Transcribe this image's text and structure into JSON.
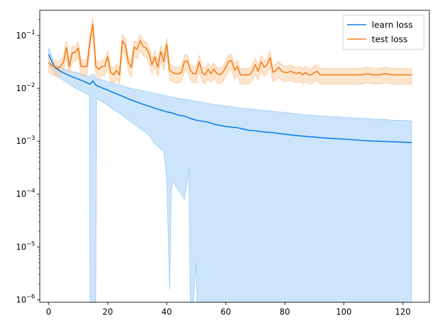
{
  "colors": {
    "learn": "#0a7ce6",
    "learn_band": "#99ccf7",
    "test": "#f07d12",
    "test_band": "#fcc99b",
    "axis": "#000000"
  },
  "legend": {
    "placement": "top-right"
  },
  "chart_data": {
    "type": "line",
    "title": "",
    "xlabel": "",
    "ylabel": "",
    "yscale": "log",
    "xlim": [
      -3,
      129
    ],
    "ylim": [
      9e-07,
      0.3
    ],
    "grid": false,
    "xticks": [
      0,
      20,
      40,
      60,
      80,
      100,
      120
    ],
    "yticks": [
      {
        "value": 1e-06,
        "base": "10",
        "exp": "−6"
      },
      {
        "value": 1e-05,
        "base": "10",
        "exp": "−5"
      },
      {
        "value": 0.0001,
        "base": "10",
        "exp": "−4"
      },
      {
        "value": 0.001,
        "base": "10",
        "exp": "−3"
      },
      {
        "value": 0.01,
        "base": "10",
        "exp": "−2"
      },
      {
        "value": 0.1,
        "base": "10",
        "exp": "−1"
      }
    ],
    "series": [
      {
        "name": "learn loss",
        "key": "learn",
        "points": [
          [
            0,
            0.044
          ],
          [
            2,
            0.025
          ],
          [
            4,
            0.021
          ],
          [
            6,
            0.0185
          ],
          [
            8,
            0.0165
          ],
          [
            10,
            0.015
          ],
          [
            12,
            0.0135
          ],
          [
            14,
            0.012
          ],
          [
            15,
            0.0138
          ],
          [
            16,
            0.0115
          ],
          [
            18,
            0.0103
          ],
          [
            20,
            0.0093
          ],
          [
            22,
            0.0083
          ],
          [
            24,
            0.0075
          ],
          [
            26,
            0.0067
          ],
          [
            28,
            0.006
          ],
          [
            30,
            0.0055
          ],
          [
            32,
            0.005
          ],
          [
            34,
            0.0046
          ],
          [
            36,
            0.0042
          ],
          [
            38,
            0.0039
          ],
          [
            40,
            0.0036
          ],
          [
            42,
            0.0034
          ],
          [
            44,
            0.0031
          ],
          [
            46,
            0.003
          ],
          [
            48,
            0.0027
          ],
          [
            50,
            0.0025
          ],
          [
            52,
            0.0024
          ],
          [
            54,
            0.0023
          ],
          [
            56,
            0.0021
          ],
          [
            58,
            0.002
          ],
          [
            60,
            0.0019
          ],
          [
            62,
            0.00185
          ],
          [
            64,
            0.0018
          ],
          [
            66,
            0.0017
          ],
          [
            68,
            0.0016
          ],
          [
            70,
            0.00158
          ],
          [
            72,
            0.00152
          ],
          [
            74,
            0.00148
          ],
          [
            76,
            0.00145
          ],
          [
            78,
            0.0014
          ],
          [
            80,
            0.00136
          ],
          [
            82,
            0.00132
          ],
          [
            84,
            0.00128
          ],
          [
            86,
            0.00125
          ],
          [
            88,
            0.00122
          ],
          [
            90,
            0.0012
          ],
          [
            92,
            0.00117
          ],
          [
            94,
            0.00115
          ],
          [
            96,
            0.00113
          ],
          [
            98,
            0.00111
          ],
          [
            100,
            0.0011
          ],
          [
            102,
            0.00108
          ],
          [
            104,
            0.00106
          ],
          [
            106,
            0.00104
          ],
          [
            108,
            0.00102
          ],
          [
            110,
            0.00101
          ],
          [
            112,
            0.001
          ],
          [
            114,
            0.00099
          ],
          [
            116,
            0.00098
          ],
          [
            118,
            0.00097
          ],
          [
            120,
            0.00096
          ],
          [
            123,
            0.00095
          ]
        ],
        "band_upper": [
          [
            0,
            0.058
          ],
          [
            2,
            0.03
          ],
          [
            4,
            0.025
          ],
          [
            6,
            0.0225
          ],
          [
            8,
            0.021
          ],
          [
            10,
            0.0195
          ],
          [
            12,
            0.018
          ],
          [
            14,
            0.0165
          ],
          [
            15,
            0.019
          ],
          [
            16,
            0.0155
          ],
          [
            18,
            0.0145
          ],
          [
            20,
            0.0135
          ],
          [
            22,
            0.0125
          ],
          [
            24,
            0.0115
          ],
          [
            26,
            0.0108
          ],
          [
            28,
            0.01
          ],
          [
            30,
            0.0095
          ],
          [
            32,
            0.009
          ],
          [
            34,
            0.0085
          ],
          [
            36,
            0.008
          ],
          [
            38,
            0.0076
          ],
          [
            40,
            0.0072
          ],
          [
            42,
            0.0068
          ],
          [
            44,
            0.0065
          ],
          [
            46,
            0.0062
          ],
          [
            48,
            0.006
          ],
          [
            50,
            0.0057
          ],
          [
            52,
            0.0055
          ],
          [
            54,
            0.0052
          ],
          [
            56,
            0.005
          ],
          [
            58,
            0.0048
          ],
          [
            60,
            0.0046
          ],
          [
            62,
            0.0045
          ],
          [
            64,
            0.0043
          ],
          [
            66,
            0.0042
          ],
          [
            68,
            0.0041
          ],
          [
            70,
            0.004
          ],
          [
            72,
            0.0039
          ],
          [
            74,
            0.0038
          ],
          [
            76,
            0.0037
          ],
          [
            78,
            0.0036
          ],
          [
            80,
            0.0035
          ],
          [
            82,
            0.0034
          ],
          [
            84,
            0.0033
          ],
          [
            86,
            0.0032
          ],
          [
            88,
            0.0031
          ],
          [
            90,
            0.0031
          ],
          [
            92,
            0.003
          ],
          [
            94,
            0.003
          ],
          [
            96,
            0.0029
          ],
          [
            98,
            0.0029
          ],
          [
            100,
            0.0028
          ],
          [
            102,
            0.0028
          ],
          [
            104,
            0.0027
          ],
          [
            106,
            0.0027
          ],
          [
            108,
            0.0027
          ],
          [
            110,
            0.0026
          ],
          [
            112,
            0.0026
          ],
          [
            114,
            0.0026
          ],
          [
            116,
            0.0025
          ],
          [
            118,
            0.0025
          ],
          [
            120,
            0.0025
          ],
          [
            123,
            0.0024
          ]
        ],
        "band_lower": [
          [
            0,
            0.03
          ],
          [
            2,
            0.019
          ],
          [
            4,
            0.0155
          ],
          [
            6,
            0.013
          ],
          [
            8,
            0.011
          ],
          [
            10,
            0.0095
          ],
          [
            12,
            0.0083
          ],
          [
            13.8,
            0.0075
          ],
          [
            14,
            1e-07
          ],
          [
            16,
            1e-07
          ],
          [
            16.2,
            0.0065
          ],
          [
            18,
            0.0056
          ],
          [
            20,
            0.0048
          ],
          [
            22,
            0.004
          ],
          [
            24,
            0.0034
          ],
          [
            26,
            0.0028
          ],
          [
            28,
            0.0023
          ],
          [
            30,
            0.0019
          ],
          [
            32,
            0.0016
          ],
          [
            34,
            0.0013
          ],
          [
            36,
            0.0009
          ],
          [
            38,
            0.00072
          ],
          [
            39,
            0.00065
          ],
          [
            40,
            0.0002
          ],
          [
            41,
            1.5e-06
          ],
          [
            41.5,
            0.0001
          ],
          [
            42,
            0.00018
          ],
          [
            44,
            0.00012
          ],
          [
            46,
            8e-05
          ],
          [
            47,
            0.00018
          ],
          [
            47.5,
            0.0003
          ],
          [
            48,
            1e-07
          ],
          [
            49,
            1e-07
          ],
          [
            50,
            5e-06
          ],
          [
            50.3,
            1e-07
          ],
          [
            123,
            1e-07
          ]
        ]
      },
      {
        "name": "test loss",
        "key": "test",
        "points": [
          [
            0,
            0.031
          ],
          [
            1,
            0.027
          ],
          [
            2,
            0.026
          ],
          [
            3,
            0.024
          ],
          [
            4,
            0.026
          ],
          [
            5,
            0.031
          ],
          [
            6,
            0.059
          ],
          [
            7,
            0.026
          ],
          [
            8,
            0.047
          ],
          [
            9,
            0.048
          ],
          [
            10,
            0.058
          ],
          [
            11,
            0.026
          ],
          [
            12,
            0.026
          ],
          [
            13,
            0.026
          ],
          [
            14,
            0.08
          ],
          [
            15,
            0.162
          ],
          [
            16,
            0.026
          ],
          [
            17,
            0.023
          ],
          [
            18,
            0.026
          ],
          [
            19,
            0.026
          ],
          [
            20,
            0.04
          ],
          [
            21,
            0.02
          ],
          [
            22,
            0.018
          ],
          [
            23,
            0.022
          ],
          [
            24,
            0.018
          ],
          [
            25,
            0.08
          ],
          [
            26,
            0.065
          ],
          [
            27,
            0.031
          ],
          [
            28,
            0.025
          ],
          [
            29,
            0.06
          ],
          [
            30,
            0.055
          ],
          [
            31,
            0.08
          ],
          [
            32,
            0.062
          ],
          [
            33,
            0.058
          ],
          [
            34,
            0.046
          ],
          [
            35,
            0.028
          ],
          [
            36,
            0.039
          ],
          [
            37,
            0.025
          ],
          [
            38,
            0.05
          ],
          [
            39,
            0.032
          ],
          [
            40,
            0.068
          ],
          [
            41,
            0.022
          ],
          [
            42,
            0.02
          ],
          [
            43,
            0.019
          ],
          [
            44,
            0.019
          ],
          [
            45,
            0.02
          ],
          [
            46,
            0.032
          ],
          [
            47,
            0.033
          ],
          [
            48,
            0.022
          ],
          [
            49,
            0.019
          ],
          [
            50,
            0.019
          ],
          [
            51,
            0.032
          ],
          [
            52,
            0.02
          ],
          [
            53,
            0.018
          ],
          [
            54,
            0.023
          ],
          [
            55,
            0.019
          ],
          [
            56,
            0.023
          ],
          [
            57,
            0.019
          ],
          [
            58,
            0.018
          ],
          [
            59,
            0.02
          ],
          [
            60,
            0.025
          ],
          [
            61,
            0.033
          ],
          [
            62,
            0.033
          ],
          [
            63,
            0.022
          ],
          [
            64,
            0.026
          ],
          [
            65,
            0.018
          ],
          [
            66,
            0.018
          ],
          [
            67,
            0.018
          ],
          [
            68,
            0.018
          ],
          [
            69,
            0.021
          ],
          [
            70,
            0.028
          ],
          [
            71,
            0.021
          ],
          [
            72,
            0.032
          ],
          [
            73,
            0.025
          ],
          [
            74,
            0.028
          ],
          [
            75,
            0.038
          ],
          [
            76,
            0.02
          ],
          [
            77,
            0.022
          ],
          [
            78,
            0.025
          ],
          [
            79,
            0.021
          ],
          [
            80,
            0.02
          ],
          [
            81,
            0.02
          ],
          [
            82,
            0.021
          ],
          [
            83,
            0.02
          ],
          [
            84,
            0.019
          ],
          [
            85,
            0.02
          ],
          [
            86,
            0.018
          ],
          [
            87,
            0.02
          ],
          [
            88,
            0.018
          ],
          [
            89,
            0.018
          ],
          [
            90,
            0.02
          ],
          [
            91,
            0.021
          ],
          [
            92,
            0.018
          ],
          [
            94,
            0.018
          ],
          [
            96,
            0.018
          ],
          [
            98,
            0.018
          ],
          [
            100,
            0.018
          ],
          [
            102,
            0.018
          ],
          [
            104,
            0.018
          ],
          [
            106,
            0.018
          ],
          [
            108,
            0.019
          ],
          [
            110,
            0.018
          ],
          [
            112,
            0.018
          ],
          [
            114,
            0.019
          ],
          [
            116,
            0.018
          ],
          [
            118,
            0.018
          ],
          [
            120,
            0.018
          ],
          [
            123,
            0.018
          ]
        ],
        "band_factor": [
          1.32,
          0.67
        ]
      }
    ]
  }
}
